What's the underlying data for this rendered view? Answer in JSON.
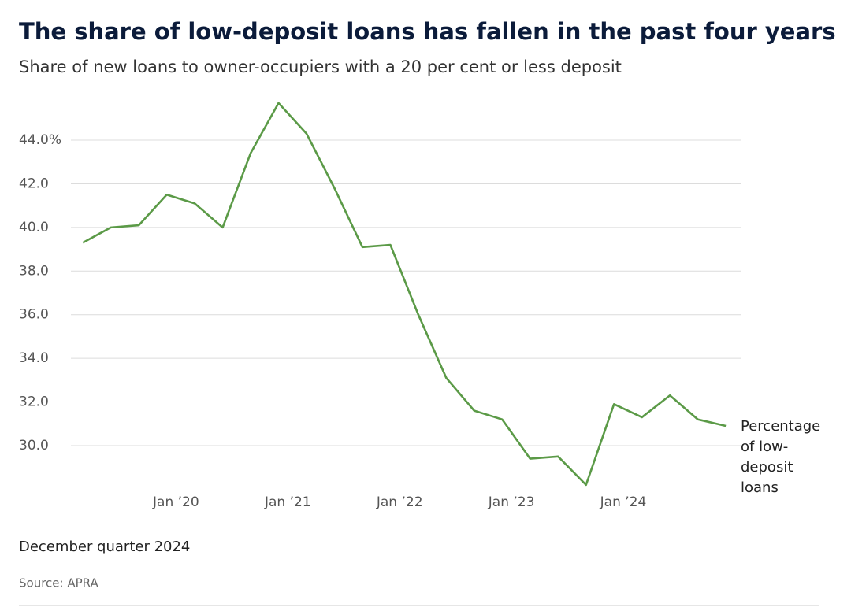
{
  "chart_data": {
    "type": "line",
    "title": "The share of low-deposit loans has fallen in the past four years",
    "subtitle": "Share of new loans to owner-occupiers with a 20 per cent or less deposit",
    "note": "December quarter 2024",
    "source": "Source: APRA",
    "x": [
      2019.167,
      2019.417,
      2019.667,
      2019.917,
      2020.167,
      2020.417,
      2020.667,
      2020.917,
      2021.167,
      2021.417,
      2021.667,
      2021.917,
      2022.167,
      2022.417,
      2022.667,
      2022.917,
      2023.167,
      2023.417,
      2023.667,
      2023.917,
      2024.167,
      2024.417,
      2024.667,
      2024.917
    ],
    "series": [
      {
        "name": "Percentage of low-deposit loans",
        "color": "#5b9a47",
        "values": [
          39.3,
          40.0,
          40.1,
          41.5,
          41.1,
          40.0,
          43.4,
          45.7,
          44.3,
          41.8,
          39.1,
          39.2,
          36.0,
          33.1,
          31.6,
          31.2,
          29.4,
          29.5,
          28.2,
          31.9,
          31.3,
          32.3,
          31.2,
          30.9
        ]
      }
    ],
    "xlim": [
      2019.06,
      2025.05
    ],
    "xticks": [
      {
        "value": 2020,
        "label": "Jan ’20"
      },
      {
        "value": 2021,
        "label": "Jan ’21"
      },
      {
        "value": 2022,
        "label": "Jan ’22"
      },
      {
        "value": 2023,
        "label": "Jan ’23"
      },
      {
        "value": 2024,
        "label": "Jan ’24"
      }
    ],
    "ylim": [
      28,
      46
    ],
    "yticks": [
      {
        "value": 30,
        "label": "30.0"
      },
      {
        "value": 32,
        "label": "32.0"
      },
      {
        "value": 34,
        "label": "34.0"
      },
      {
        "value": 36,
        "label": "36.0"
      },
      {
        "value": 38,
        "label": "38.0"
      },
      {
        "value": 40,
        "label": "40.0"
      },
      {
        "value": 42,
        "label": "42.0"
      },
      {
        "value": 44,
        "label": "44.0%"
      }
    ],
    "grid": true
  }
}
